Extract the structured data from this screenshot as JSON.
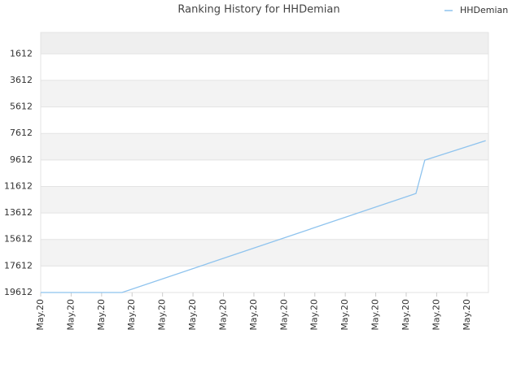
{
  "chart_data": {
    "type": "line",
    "title": "Ranking History for HHDemian",
    "xticks": [
      {
        "value": 0,
        "label": "May.20"
      },
      {
        "value": 1,
        "label": "May.20"
      },
      {
        "value": 2,
        "label": "May.20"
      },
      {
        "value": 3,
        "label": "May.20"
      },
      {
        "value": 4,
        "label": "May.20"
      },
      {
        "value": 5,
        "label": "May.20"
      },
      {
        "value": 6,
        "label": "May.20"
      },
      {
        "value": 7,
        "label": "May.20"
      },
      {
        "value": 8,
        "label": "May.20"
      },
      {
        "value": 9,
        "label": "May.20"
      },
      {
        "value": 10,
        "label": "May.20"
      },
      {
        "value": 11,
        "label": "May.20"
      },
      {
        "value": 12,
        "label": "May.20"
      },
      {
        "value": 13,
        "label": "May.20"
      },
      {
        "value": 14,
        "label": "May.20"
      }
    ],
    "xlim": [
      0,
      14.7
    ],
    "x": [
      0,
      2.67,
      12.32,
      12.61,
      14.61
    ],
    "series": [
      {
        "name": "HHDemian",
        "color": "#8ec3ee",
        "values": [
          19612,
          19612,
          12142,
          9632,
          8162
        ]
      }
    ],
    "ylim": [
      19612,
      0
    ],
    "y_inverted": true,
    "yticks": [
      1612,
      3612,
      5612,
      7612,
      9612,
      11612,
      13612,
      15612,
      17612,
      19612
    ],
    "grid": true,
    "legend": "top-right"
  }
}
